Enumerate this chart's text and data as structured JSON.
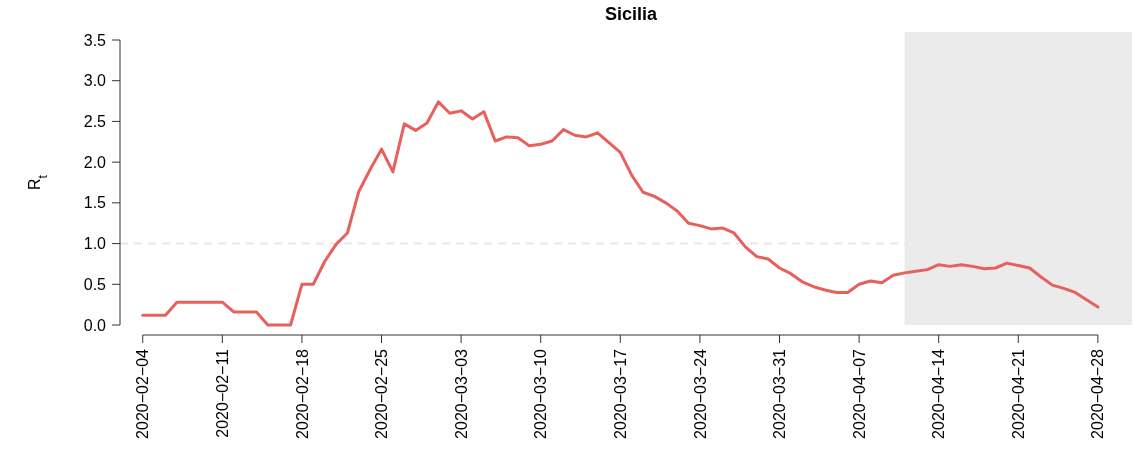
{
  "chart_data": {
    "type": "line",
    "title": "Sicilia",
    "ylabel": "R$_{t}$",
    "x": [
      "2020-02-04",
      "2020-02-05",
      "2020-02-06",
      "2020-02-07",
      "2020-02-08",
      "2020-02-09",
      "2020-02-10",
      "2020-02-11",
      "2020-02-12",
      "2020-02-13",
      "2020-02-14",
      "2020-02-15",
      "2020-02-16",
      "2020-02-17",
      "2020-02-18",
      "2020-02-19",
      "2020-02-20",
      "2020-02-21",
      "2020-02-22",
      "2020-02-23",
      "2020-02-24",
      "2020-02-25",
      "2020-02-26",
      "2020-02-27",
      "2020-02-28",
      "2020-02-29",
      "2020-03-01",
      "2020-03-02",
      "2020-03-03",
      "2020-03-04",
      "2020-03-05",
      "2020-03-06",
      "2020-03-07",
      "2020-03-08",
      "2020-03-09",
      "2020-03-10",
      "2020-03-11",
      "2020-03-12",
      "2020-03-13",
      "2020-03-14",
      "2020-03-15",
      "2020-03-16",
      "2020-03-17",
      "2020-03-18",
      "2020-03-19",
      "2020-03-20",
      "2020-03-21",
      "2020-03-22",
      "2020-03-23",
      "2020-03-24",
      "2020-03-25",
      "2020-03-26",
      "2020-03-27",
      "2020-03-28",
      "2020-03-29",
      "2020-03-30",
      "2020-03-31",
      "2020-04-01",
      "2020-04-02",
      "2020-04-03",
      "2020-04-04",
      "2020-04-05",
      "2020-04-06",
      "2020-04-07",
      "2020-04-08",
      "2020-04-09",
      "2020-04-10",
      "2020-04-11",
      "2020-04-12",
      "2020-04-13",
      "2020-04-14",
      "2020-04-15",
      "2020-04-16",
      "2020-04-17",
      "2020-04-18",
      "2020-04-19",
      "2020-04-20",
      "2020-04-21",
      "2020-04-22",
      "2020-04-23",
      "2020-04-24",
      "2020-04-25",
      "2020-04-26",
      "2020-04-27",
      "2020-04-28"
    ],
    "series": [
      {
        "color": "#e8605c",
        "values": [
          0.12,
          0.12,
          0.12,
          0.28,
          0.28,
          0.28,
          0.28,
          0.28,
          0.16,
          0.16,
          0.16,
          0.0,
          0.0,
          0.0,
          0.5,
          0.5,
          0.78,
          0.99,
          1.13,
          1.64,
          1.91,
          2.16,
          1.88,
          2.47,
          2.39,
          2.48,
          2.74,
          2.6,
          2.63,
          2.53,
          2.62,
          2.26,
          2.31,
          2.3,
          2.2,
          2.22,
          2.26,
          2.4,
          2.33,
          2.31,
          2.36,
          2.24,
          2.12,
          1.84,
          1.63,
          1.58,
          1.5,
          1.4,
          1.25,
          1.22,
          1.18,
          1.19,
          1.13,
          0.96,
          0.84,
          0.81,
          0.7,
          0.63,
          0.53,
          0.47,
          0.43,
          0.4,
          0.4,
          0.5,
          0.54,
          0.52,
          0.61,
          0.64,
          0.66,
          0.68,
          0.74,
          0.72,
          0.74,
          0.72,
          0.69,
          0.7,
          0.76,
          0.73,
          0.7,
          0.59,
          0.49,
          0.45,
          0.4,
          0.31,
          0.22
        ]
      }
    ],
    "xlim": [
      "2020-02-02",
      "2020-05-01"
    ],
    "xticks": [
      {
        "value": "2020-02-04",
        "label": "2020−02−04"
      },
      {
        "value": "2020-02-11",
        "label": "2020−02−11"
      },
      {
        "value": "2020-02-18",
        "label": "2020−02−18"
      },
      {
        "value": "2020-02-25",
        "label": "2020−02−25"
      },
      {
        "value": "2020-03-03",
        "label": "2020−03−03"
      },
      {
        "value": "2020-03-10",
        "label": "2020−03−10"
      },
      {
        "value": "2020-03-17",
        "label": "2020−03−17"
      },
      {
        "value": "2020-03-24",
        "label": "2020−03−24"
      },
      {
        "value": "2020-03-31",
        "label": "2020−03−31"
      },
      {
        "value": "2020-04-07",
        "label": "2020−04−07"
      },
      {
        "value": "2020-04-14",
        "label": "2020−04−14"
      },
      {
        "value": "2020-04-21",
        "label": "2020−04−21"
      },
      {
        "value": "2020-04-28",
        "label": "2020−04−28"
      }
    ],
    "ylim": [
      0,
      3.5
    ],
    "yticks": [
      {
        "value": 0,
        "label": "0.0"
      },
      {
        "value": 0.5,
        "label": "0.5"
      },
      {
        "value": 1,
        "label": "1.0"
      },
      {
        "value": 1.5,
        "label": "1.5"
      },
      {
        "value": 2,
        "label": "2.0"
      },
      {
        "value": 2.5,
        "label": "2.5"
      },
      {
        "value": 3,
        "label": "3.0"
      },
      {
        "value": 3.5,
        "label": "3.5"
      }
    ],
    "ref_lines": [
      {
        "axis": "y",
        "value": 1,
        "color": "#e8e8e8",
        "line_style": "dashed"
      }
    ],
    "bands": [
      {
        "axis": "x",
        "from": "2020-04-11",
        "to": "2020-05-01",
        "color": "#ebebeb"
      }
    ],
    "grid": false
  }
}
